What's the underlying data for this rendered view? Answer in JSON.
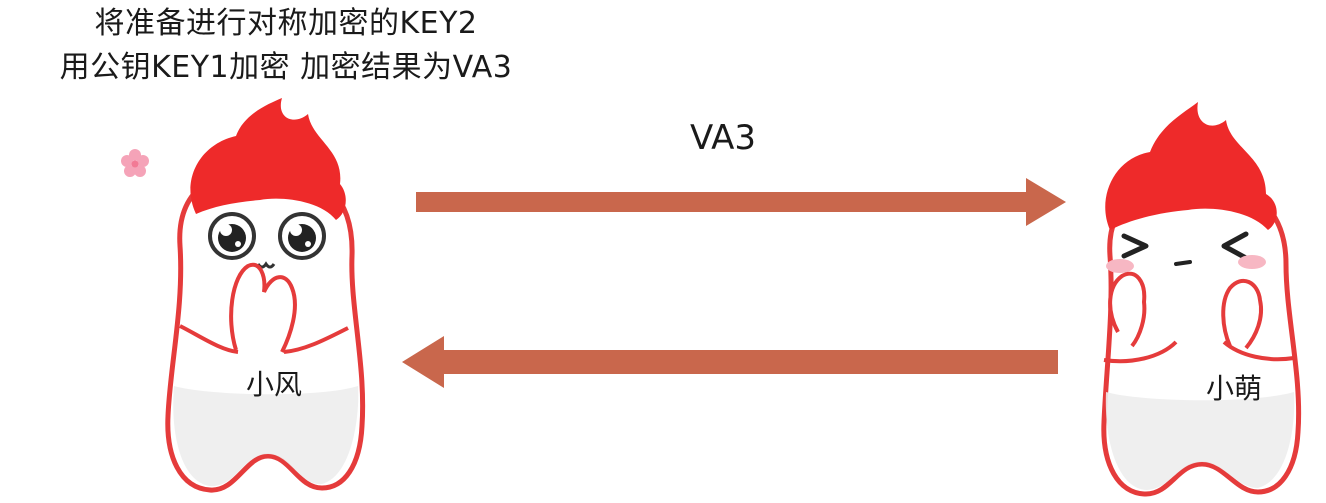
{
  "caption": {
    "line1": "将准备进行对称加密的KEY2",
    "line2": "用公钥KEY1加密 加密结果为VA3"
  },
  "message": {
    "label": "VA3"
  },
  "participants": {
    "left_name": "小风",
    "right_name": "小萌"
  },
  "colors": {
    "arrow": "#C9674C",
    "flame": "#EE2A2A",
    "outline": "#E53B3B",
    "blush": "#F7B7C3",
    "text": "#1A1A1A"
  },
  "icons": [
    "left-character-icon",
    "right-character-icon",
    "flower-icon",
    "arrow-right-icon",
    "arrow-left-icon"
  ]
}
